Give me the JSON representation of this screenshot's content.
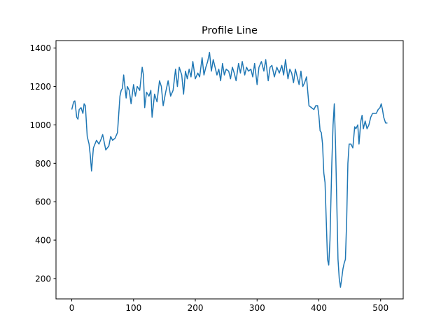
{
  "chart_data": {
    "type": "line",
    "title": "Profile Line",
    "x": [
      0,
      3,
      5,
      8,
      10,
      12,
      15,
      18,
      20,
      22,
      25,
      28,
      30,
      32,
      35,
      40,
      44,
      48,
      50,
      55,
      60,
      63,
      66,
      70,
      74,
      78,
      80,
      82,
      84,
      86,
      88,
      90,
      93,
      96,
      100,
      103,
      106,
      110,
      114,
      116,
      118,
      121,
      125,
      128,
      130,
      134,
      138,
      142,
      145,
      148,
      152,
      156,
      160,
      164,
      168,
      171,
      174,
      178,
      181,
      184,
      187,
      190,
      193,
      196,
      200,
      204,
      207,
      211,
      214,
      217,
      220,
      223,
      226,
      229,
      232,
      235,
      238,
      241,
      244,
      247,
      250,
      254,
      257,
      260,
      263,
      266,
      270,
      273,
      276,
      280,
      283,
      286,
      290,
      293,
      296,
      300,
      303,
      307,
      311,
      314,
      318,
      321,
      324,
      328,
      332,
      336,
      340,
      343,
      346,
      350,
      353,
      356,
      359,
      362,
      365,
      368,
      371,
      374,
      377,
      380,
      384,
      388,
      392,
      395,
      398,
      400,
      402,
      404,
      406,
      408,
      410,
      412,
      414,
      416,
      418,
      421,
      423,
      425,
      427,
      429,
      431,
      433,
      435,
      437,
      439,
      441,
      443,
      445,
      447,
      449,
      452,
      455,
      458,
      460,
      463,
      465,
      468,
      470,
      472,
      475,
      478,
      481,
      484,
      487,
      490,
      493,
      496,
      499,
      501,
      503,
      505,
      508,
      511
    ],
    "series": [
      {
        "color": "#1f77b4",
        "values": [
          1080,
          1120,
          1125,
          1040,
          1030,
          1080,
          1090,
          1060,
          1110,
          1100,
          940,
          900,
          840,
          760,
          880,
          920,
          900,
          930,
          950,
          870,
          890,
          940,
          920,
          930,
          960,
          1150,
          1180,
          1190,
          1260,
          1200,
          1140,
          1200,
          1180,
          1110,
          1210,
          1150,
          1200,
          1180,
          1300,
          1260,
          1090,
          1170,
          1150,
          1180,
          1040,
          1160,
          1120,
          1230,
          1200,
          1100,
          1170,
          1230,
          1150,
          1180,
          1290,
          1200,
          1300,
          1260,
          1160,
          1280,
          1240,
          1290,
          1250,
          1330,
          1240,
          1270,
          1250,
          1350,
          1260,
          1300,
          1330,
          1378,
          1280,
          1340,
          1300,
          1260,
          1290,
          1230,
          1320,
          1260,
          1290,
          1280,
          1240,
          1300,
          1270,
          1230,
          1320,
          1270,
          1330,
          1260,
          1300,
          1280,
          1290,
          1250,
          1320,
          1210,
          1300,
          1330,
          1280,
          1340,
          1230,
          1300,
          1310,
          1250,
          1300,
          1270,
          1310,
          1260,
          1340,
          1240,
          1290,
          1270,
          1220,
          1290,
          1250,
          1210,
          1280,
          1200,
          1220,
          1250,
          1100,
          1090,
          1080,
          1100,
          1100,
          1050,
          970,
          960,
          900,
          750,
          700,
          500,
          300,
          270,
          400,
          800,
          1000,
          1110,
          900,
          600,
          300,
          200,
          155,
          200,
          250,
          280,
          300,
          500,
          800,
          900,
          900,
          880,
          990,
          980,
          1000,
          900,
          1020,
          1050,
          980,
          1020,
          980,
          1000,
          1040,
          1060,
          1060,
          1060,
          1080,
          1090,
          1110,
          1080,
          1040,
          1010,
          1010
        ]
      }
    ],
    "xlim": [
      -25.55,
      536.55
    ],
    "ylim": [
      94,
      1439
    ],
    "xticks": [
      0,
      100,
      200,
      300,
      400,
      500
    ],
    "yticks": [
      200,
      400,
      600,
      800,
      1000,
      1200,
      1400
    ]
  }
}
